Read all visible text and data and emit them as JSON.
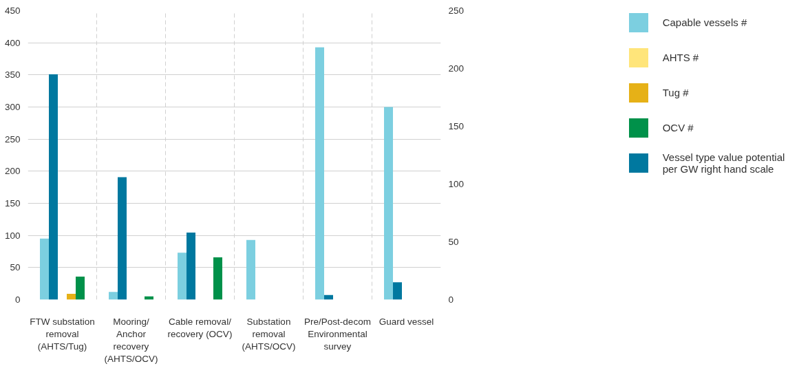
{
  "chart_data": {
    "type": "bar",
    "categories": [
      "FTW substation removal (AHTS/Tug)",
      "Mooring/ Anchor recovery (AHTS/OCV)",
      "Cable removal/ recovery (OCV)",
      "Substation removal (AHTS/OCV)",
      "Pre/Post-decom Environmental survey",
      "Guard vessel"
    ],
    "series": [
      {
        "name": "Capable vessels #",
        "color": "#7ccfe0",
        "values": [
          95,
          12,
          73,
          93,
          393,
          300
        ]
      },
      {
        "name": "Vessel type value potential per GW right hand scale",
        "color": "#00789f",
        "axis": "y2",
        "values": [
          195,
          106,
          58,
          null,
          4,
          15
        ]
      },
      {
        "name": "AHTS #",
        "color": "#ffe57a",
        "values": [
          null,
          null,
          null,
          null,
          null,
          null
        ]
      },
      {
        "name": "Tug #",
        "color": "#e6b117",
        "values": [
          9,
          null,
          null,
          null,
          null,
          null
        ]
      },
      {
        "name": "OCV #",
        "color": "#00914a",
        "values": [
          36,
          5,
          66,
          null,
          null,
          null
        ]
      }
    ],
    "ylim": [
      0,
      450
    ],
    "yticks": [
      0,
      50,
      100,
      150,
      200,
      250,
      300,
      350,
      400,
      450
    ],
    "y2lim": [
      0,
      250
    ],
    "y2ticks": [
      0,
      50,
      100,
      150,
      200,
      250
    ],
    "grid": true,
    "legend": "right"
  }
}
